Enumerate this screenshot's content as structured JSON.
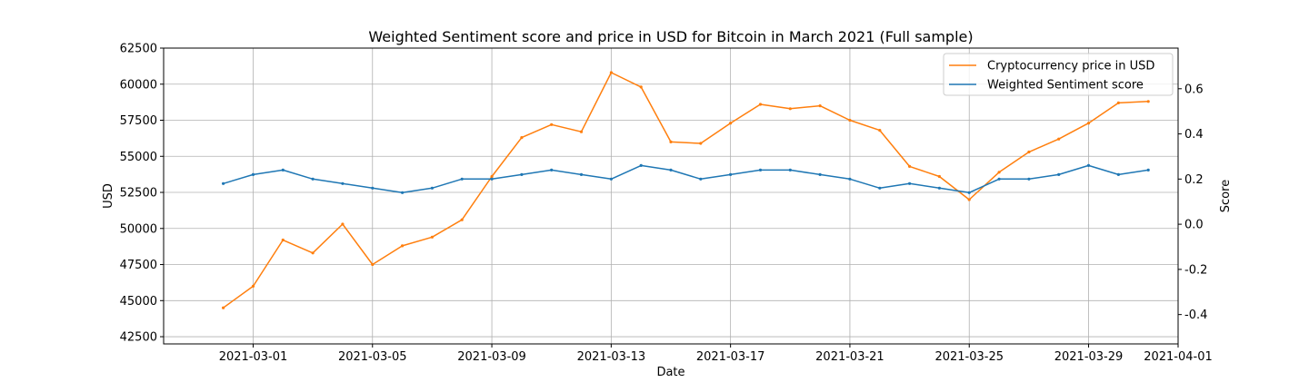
{
  "chart_data": {
    "type": "line",
    "title": "Weighted Sentiment score and price in USD for Bitcoin in March 2021 (Full sample)",
    "xlabel": "Date",
    "ylabel_left": "USD",
    "ylabel_right": "Score",
    "xlim": [
      "2021-02-26",
      "2021-04-01"
    ],
    "ylim_left": [
      42000,
      62500
    ],
    "ylim_right": [
      -0.53,
      0.78
    ],
    "x_ticks": [
      "2021-03-01",
      "2021-03-05",
      "2021-03-09",
      "2021-03-13",
      "2021-03-17",
      "2021-03-21",
      "2021-03-25",
      "2021-03-29",
      "2021-04-01"
    ],
    "y_left_ticks": [
      42500,
      45000,
      47500,
      50000,
      52500,
      55000,
      57500,
      60000,
      62500
    ],
    "y_right_ticks": [
      -0.4,
      -0.2,
      0.0,
      0.2,
      0.4,
      0.6
    ],
    "grid": true,
    "legend_position": "top-right",
    "series": [
      {
        "name": "Cryptocurrency price in USD",
        "axis": "left",
        "color": "#ff7f0e",
        "x": [
          "2021-02-28",
          "2021-03-01",
          "2021-03-02",
          "2021-03-03",
          "2021-03-04",
          "2021-03-05",
          "2021-03-06",
          "2021-03-07",
          "2021-03-08",
          "2021-03-09",
          "2021-03-10",
          "2021-03-11",
          "2021-03-12",
          "2021-03-13",
          "2021-03-14",
          "2021-03-15",
          "2021-03-16",
          "2021-03-17",
          "2021-03-18",
          "2021-03-19",
          "2021-03-20",
          "2021-03-21",
          "2021-03-22",
          "2021-03-23",
          "2021-03-24",
          "2021-03-25",
          "2021-03-26",
          "2021-03-27",
          "2021-03-28",
          "2021-03-29",
          "2021-03-30",
          "2021-03-31"
        ],
        "values": [
          44500,
          46000,
          49200,
          48300,
          50300,
          47500,
          48800,
          49400,
          50600,
          53600,
          56300,
          57200,
          56700,
          60800,
          59800,
          56000,
          55900,
          57300,
          58600,
          58300,
          58500,
          57500,
          56800,
          54300,
          53600,
          52000,
          53900,
          55300,
          56200,
          57300,
          58700,
          58800
        ]
      },
      {
        "name": "Weighted Sentiment score",
        "axis": "right",
        "color": "#1f77b4",
        "x": [
          "2021-02-28",
          "2021-03-01",
          "2021-03-02",
          "2021-03-03",
          "2021-03-04",
          "2021-03-05",
          "2021-03-06",
          "2021-03-07",
          "2021-03-08",
          "2021-03-09",
          "2021-03-10",
          "2021-03-11",
          "2021-03-12",
          "2021-03-13",
          "2021-03-14",
          "2021-03-15",
          "2021-03-16",
          "2021-03-17",
          "2021-03-18",
          "2021-03-19",
          "2021-03-20",
          "2021-03-21",
          "2021-03-22",
          "2021-03-23",
          "2021-03-24",
          "2021-03-25",
          "2021-03-26",
          "2021-03-27",
          "2021-03-28",
          "2021-03-29",
          "2021-03-30",
          "2021-03-31"
        ],
        "values": [
          0.18,
          0.22,
          0.24,
          0.2,
          0.18,
          0.16,
          0.14,
          0.16,
          0.2,
          0.2,
          0.22,
          0.24,
          0.22,
          0.2,
          0.26,
          0.24,
          0.2,
          0.22,
          0.24,
          0.24,
          0.22,
          0.2,
          0.16,
          0.18,
          0.16,
          0.14,
          0.2,
          0.2,
          0.22,
          0.26,
          0.22,
          0.24
        ]
      }
    ]
  }
}
